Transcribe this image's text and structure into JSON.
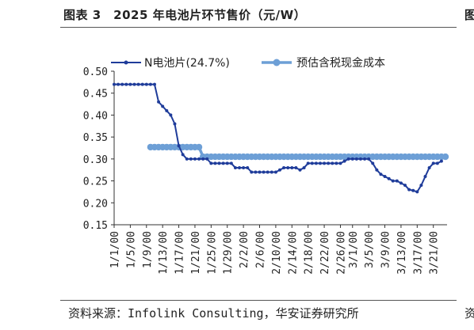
{
  "figure": {
    "title": "图表 3　2025 年电池片环节售价（元/W）",
    "source": "资料来源：Infolink Consulting，华安证券研究所",
    "clipped_next_title": "图",
    "clipped_next_source": "资"
  },
  "chart_data": {
    "type": "line",
    "title": "图表 3　2025 年电池片环节售价（元/W）",
    "xlabel": "",
    "ylabel": "",
    "ylim": [
      0.15,
      0.5
    ],
    "yticks": [
      "0.50",
      "0.45",
      "0.40",
      "0.35",
      "0.30",
      "0.25",
      "0.20",
      "0.15"
    ],
    "x_tick_labels": [
      "1/1/00",
      "1/5/00",
      "1/9/00",
      "1/13/00",
      "1/17/00",
      "1/21/00",
      "1/25/00",
      "1/29/00",
      "2/2/00",
      "2/6/00",
      "2/10/00",
      "2/14/00",
      "2/18/00",
      "2/22/00",
      "2/26/00",
      "3/1/00",
      "3/5/00",
      "3/9/00",
      "3/13/00",
      "3/17/00",
      "3/21/00"
    ],
    "x_tick_days": [
      1,
      5,
      9,
      13,
      17,
      21,
      25,
      29,
      33,
      37,
      41,
      45,
      49,
      53,
      57,
      60,
      64,
      68,
      72,
      76,
      80
    ],
    "legend_position": "top",
    "grid": false,
    "series": [
      {
        "name": "N电池片(24.7%)",
        "color": "#1f3c9a",
        "marker": "circle-small",
        "x": [
          1,
          2,
          3,
          4,
          5,
          6,
          7,
          8,
          9,
          10,
          11,
          12,
          13,
          14,
          15,
          16,
          17,
          18,
          19,
          20,
          21,
          22,
          23,
          24,
          25,
          26,
          27,
          28,
          29,
          30,
          31,
          32,
          33,
          34,
          35,
          36,
          37,
          38,
          39,
          40,
          41,
          42,
          43,
          44,
          45,
          46,
          47,
          48,
          49,
          50,
          51,
          52,
          53,
          54,
          55,
          56,
          57,
          58,
          59,
          60,
          61,
          62,
          63,
          64,
          65,
          66,
          67,
          68,
          69,
          70,
          71,
          72,
          73,
          74,
          75,
          76,
          77,
          78,
          79,
          80,
          81,
          82
        ],
        "values": [
          0.47,
          0.47,
          0.47,
          0.47,
          0.47,
          0.47,
          0.47,
          0.47,
          0.47,
          0.47,
          0.47,
          0.43,
          0.42,
          0.41,
          0.4,
          0.38,
          0.33,
          0.31,
          0.3,
          0.3,
          0.3,
          0.3,
          0.3,
          0.3,
          0.29,
          0.29,
          0.29,
          0.29,
          0.29,
          0.29,
          0.28,
          0.28,
          0.28,
          0.28,
          0.27,
          0.27,
          0.27,
          0.27,
          0.27,
          0.27,
          0.27,
          0.275,
          0.28,
          0.28,
          0.28,
          0.28,
          0.275,
          0.28,
          0.29,
          0.29,
          0.29,
          0.29,
          0.29,
          0.29,
          0.29,
          0.29,
          0.29,
          0.295,
          0.3,
          0.3,
          0.3,
          0.3,
          0.3,
          0.3,
          0.29,
          0.275,
          0.265,
          0.26,
          0.255,
          0.25,
          0.25,
          0.245,
          0.24,
          0.23,
          0.228,
          0.225,
          0.24,
          0.26,
          0.28,
          0.29,
          0.29,
          0.295
        ]
      },
      {
        "name": "预估含税现金成本",
        "color": "#6d9fd6",
        "marker": "circle-large",
        "x": [
          10,
          11,
          12,
          13,
          14,
          15,
          16,
          17,
          18,
          19,
          20,
          21,
          22,
          23,
          24,
          25,
          26,
          27,
          28,
          29,
          30,
          31,
          32,
          33,
          34,
          35,
          36,
          37,
          38,
          39,
          40,
          41,
          42,
          43,
          44,
          45,
          46,
          47,
          48,
          49,
          50,
          51,
          52,
          53,
          54,
          55,
          56,
          57,
          58,
          59,
          60,
          61,
          62,
          63,
          64,
          65,
          66,
          67,
          68,
          69,
          70,
          71,
          72,
          73,
          74,
          75,
          76,
          77,
          78,
          79,
          80,
          81,
          82,
          83
        ],
        "values": [
          0.327,
          0.327,
          0.327,
          0.327,
          0.327,
          0.327,
          0.327,
          0.327,
          0.327,
          0.327,
          0.327,
          0.327,
          0.327,
          0.305,
          0.305,
          0.305,
          0.305,
          0.305,
          0.305,
          0.305,
          0.305,
          0.305,
          0.305,
          0.305,
          0.305,
          0.305,
          0.305,
          0.305,
          0.305,
          0.305,
          0.305,
          0.305,
          0.305,
          0.305,
          0.305,
          0.305,
          0.305,
          0.305,
          0.305,
          0.305,
          0.305,
          0.305,
          0.305,
          0.305,
          0.305,
          0.305,
          0.305,
          0.305,
          0.305,
          0.305,
          0.305,
          0.305,
          0.305,
          0.305,
          0.305,
          0.305,
          0.305,
          0.305,
          0.305,
          0.305,
          0.305,
          0.305,
          0.305,
          0.305,
          0.305,
          0.305,
          0.305,
          0.305,
          0.305,
          0.305,
          0.305,
          0.305,
          0.305,
          0.305
        ]
      }
    ]
  }
}
